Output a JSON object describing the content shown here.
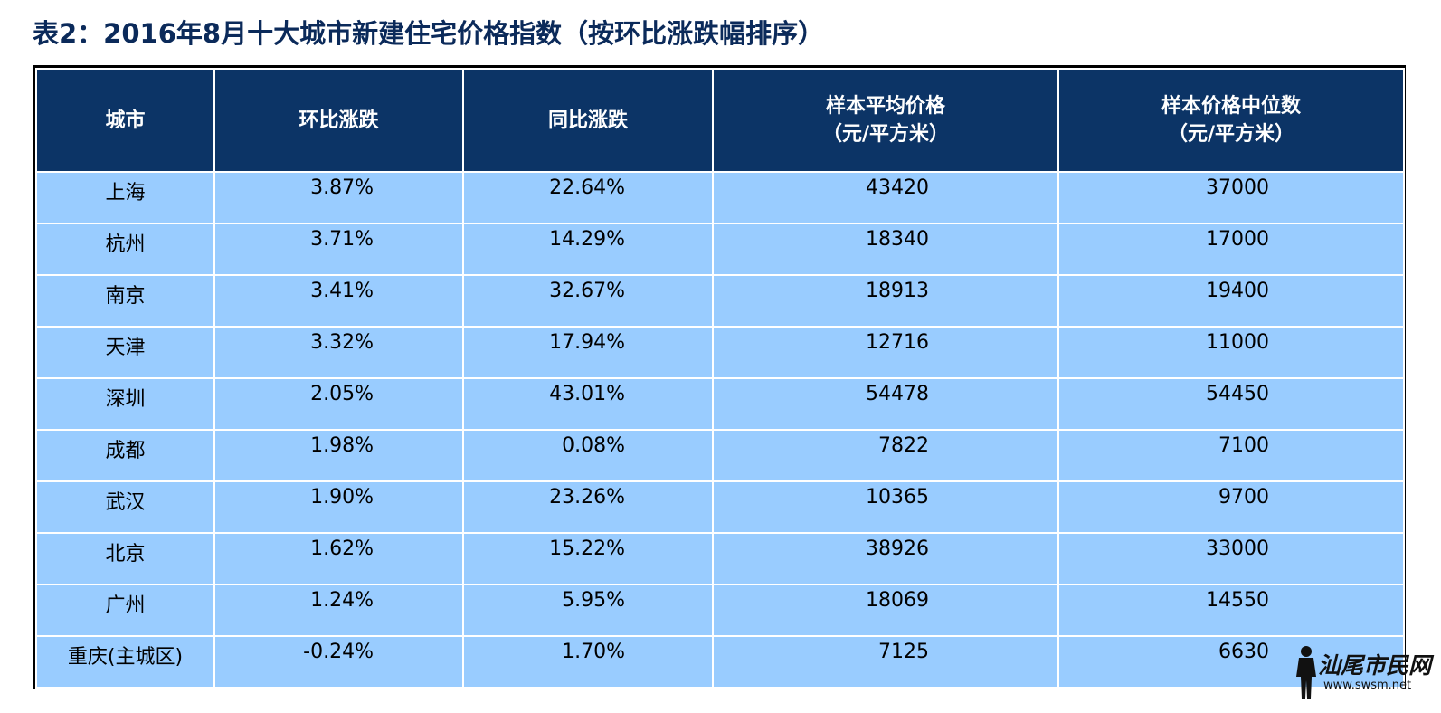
{
  "title": "表2：2016年8月十大城市新建住宅价格指数（按环比涨跌幅排序）",
  "table": {
    "headers": [
      {
        "lines": [
          "城市"
        ]
      },
      {
        "lines": [
          "环比涨跌"
        ]
      },
      {
        "lines": [
          "同比涨跌"
        ]
      },
      {
        "lines": [
          "样本平均价格",
          "（元/平方米）"
        ]
      },
      {
        "lines": [
          "样本价格中位数",
          "（元/平方米）"
        ]
      }
    ],
    "rows": [
      {
        "city": "上海",
        "mom": "3.87%",
        "yoy": "22.64%",
        "avg": "43420",
        "median": "37000"
      },
      {
        "city": "杭州",
        "mom": "3.71%",
        "yoy": "14.29%",
        "avg": "18340",
        "median": "17000"
      },
      {
        "city": "南京",
        "mom": "3.41%",
        "yoy": "32.67%",
        "avg": "18913",
        "median": "19400"
      },
      {
        "city": "天津",
        "mom": "3.32%",
        "yoy": "17.94%",
        "avg": "12716",
        "median": "11000"
      },
      {
        "city": "深圳",
        "mom": "2.05%",
        "yoy": "43.01%",
        "avg": "54478",
        "median": "54450"
      },
      {
        "city": "成都",
        "mom": "1.98%",
        "yoy": "0.08%",
        "avg": "7822",
        "median": "7100"
      },
      {
        "city": "武汉",
        "mom": "1.90%",
        "yoy": "23.26%",
        "avg": "10365",
        "median": "9700"
      },
      {
        "city": "北京",
        "mom": "1.62%",
        "yoy": "15.22%",
        "avg": "38926",
        "median": "33000"
      },
      {
        "city": "广州",
        "mom": "1.24%",
        "yoy": "5.95%",
        "avg": "18069",
        "median": "14550"
      },
      {
        "city": "重庆(主城区)",
        "mom": "-0.24%",
        "yoy": "1.70%",
        "avg": "7125",
        "median": "6630"
      }
    ]
  },
  "watermark": {
    "logo_text": "汕尾市民网",
    "site_text": "www.swsm.net"
  },
  "colors": {
    "title": "#0b2a5a",
    "header_bg": "#0c3466",
    "row_bg": "#99ccff"
  }
}
